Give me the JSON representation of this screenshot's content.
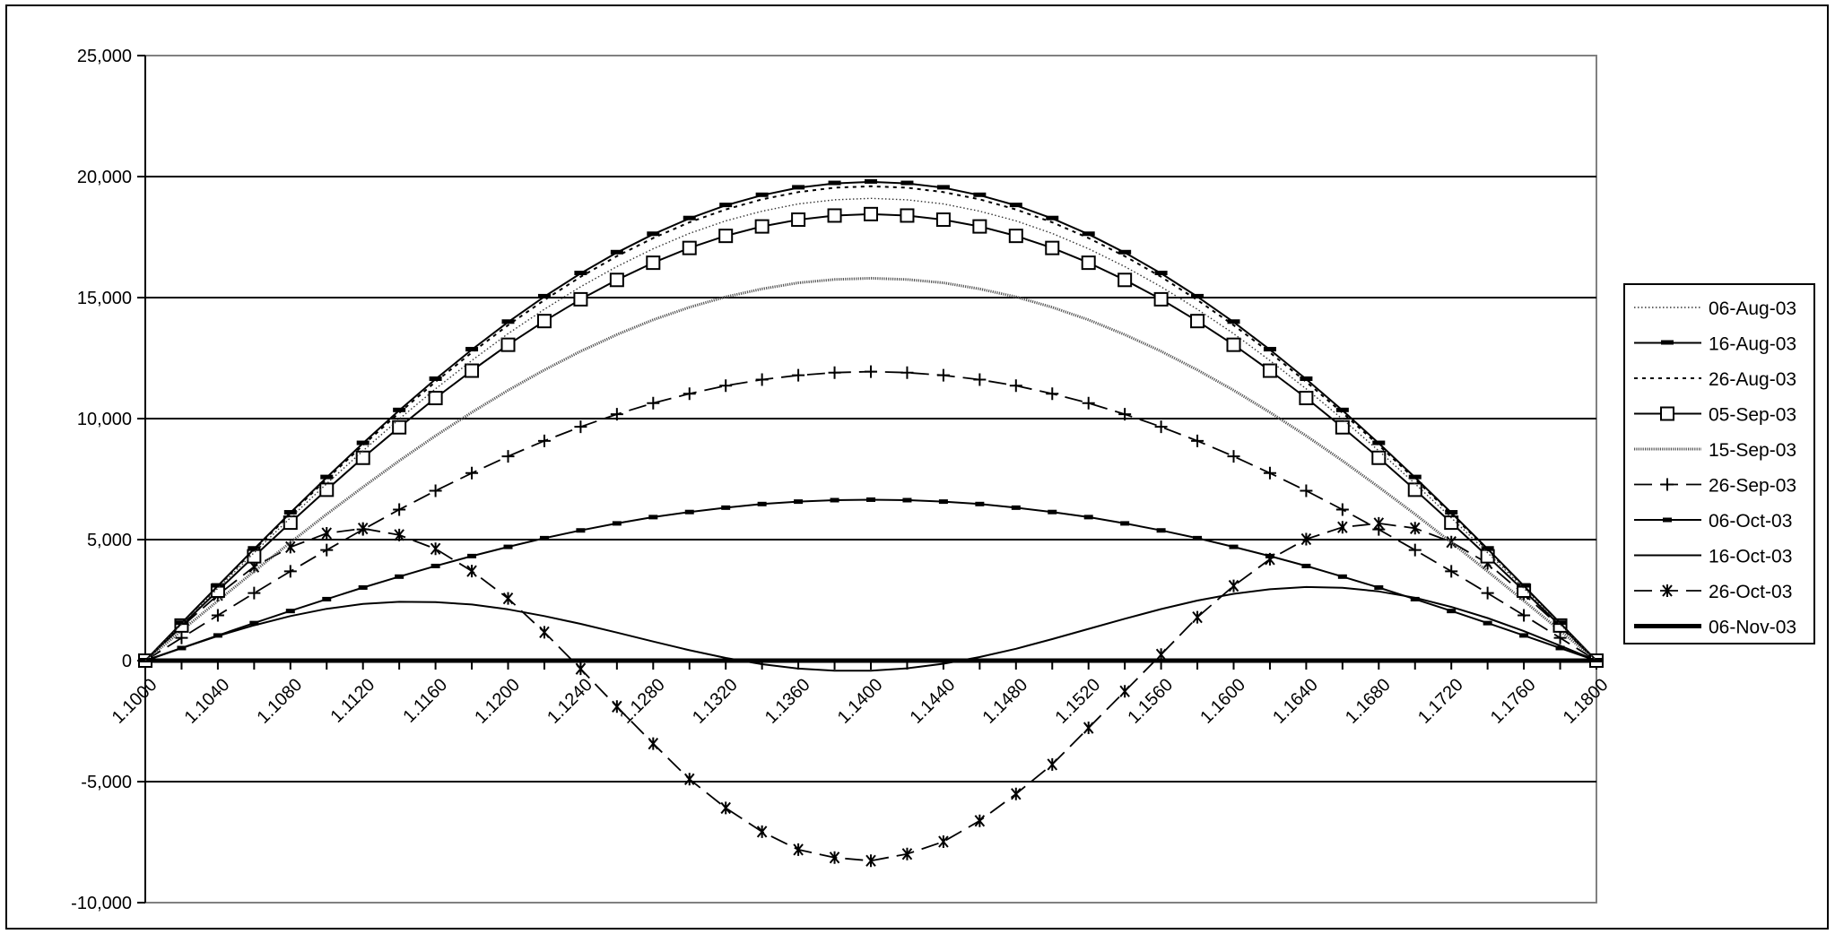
{
  "chart_data": {
    "type": "line",
    "title": "",
    "xlabel": "",
    "ylabel": "",
    "ylim": [
      -10000,
      25000
    ],
    "yticks": [
      -10000,
      -5000,
      0,
      5000,
      10000,
      15000,
      20000,
      25000
    ],
    "ytick_labels": [
      "-10,000",
      "-5,000",
      "0",
      "5,000",
      "10,000",
      "15,000",
      "20,000",
      "25,000"
    ],
    "xlim": [
      1.1,
      1.18
    ],
    "xtick_labels": [
      "1.1000",
      "1.1040",
      "1.1080",
      "1.1120",
      "1.1160",
      "1.1200",
      "1.1240",
      "1.1280",
      "1.1320",
      "1.1360",
      "1.1400",
      "1.1440",
      "1.1480",
      "1.1520",
      "1.1560",
      "1.1600",
      "1.1640",
      "1.1680",
      "1.1720",
      "1.1760",
      "1.1800"
    ],
    "x": [
      1.1,
      1.102,
      1.104,
      1.106,
      1.108,
      1.11,
      1.112,
      1.114,
      1.116,
      1.118,
      1.12,
      1.122,
      1.124,
      1.126,
      1.128,
      1.13,
      1.132,
      1.134,
      1.136,
      1.138,
      1.14,
      1.142,
      1.144,
      1.146,
      1.148,
      1.15,
      1.152,
      1.154,
      1.156,
      1.158,
      1.16,
      1.162,
      1.164,
      1.166,
      1.168,
      1.17,
      1.172,
      1.174,
      1.176,
      1.178,
      1.18
    ],
    "grid": true,
    "legend_position": "right",
    "series": [
      {
        "name": "06-Aug-03",
        "style": "dotted",
        "marker": "none",
        "values": [
          0,
          1500,
          2990,
          4460,
          5900,
          7310,
          8670,
          9980,
          11230,
          12400,
          13510,
          14520,
          15450,
          16280,
          17020,
          17650,
          18170,
          18570,
          18870,
          19040,
          19100,
          19040,
          18870,
          18570,
          18170,
          17650,
          17020,
          16280,
          15450,
          14520,
          13510,
          12400,
          11230,
          9980,
          8670,
          7310,
          5900,
          4460,
          2990,
          1500,
          0
        ]
      },
      {
        "name": "16-Aug-03",
        "style": "solid",
        "marker": "bar",
        "values": [
          0,
          1550,
          3090,
          4620,
          6110,
          7570,
          8980,
          10340,
          11630,
          12850,
          13990,
          15040,
          16000,
          16860,
          17620,
          18270,
          18810,
          19230,
          19540,
          19720,
          19780,
          19720,
          19540,
          19230,
          18810,
          18270,
          17620,
          16860,
          16000,
          15040,
          13990,
          12850,
          11630,
          10340,
          8980,
          7570,
          6110,
          4620,
          3090,
          1550,
          0
        ]
      },
      {
        "name": "26-Aug-03",
        "style": "dashed",
        "marker": "none",
        "values": [
          0,
          1540,
          3070,
          4570,
          6060,
          7500,
          8900,
          10240,
          11520,
          12730,
          13860,
          14900,
          15860,
          16710,
          17460,
          18110,
          18640,
          19060,
          19360,
          19540,
          19600,
          19540,
          19360,
          19060,
          18640,
          18110,
          17460,
          16710,
          15860,
          14900,
          13860,
          12730,
          11520,
          10240,
          8900,
          7500,
          6060,
          4570,
          3070,
          1540,
          0
        ]
      },
      {
        "name": "05-Sep-03",
        "style": "solid",
        "marker": "square",
        "values": [
          0,
          1450,
          2890,
          4310,
          5700,
          7060,
          8380,
          9640,
          10850,
          11980,
          13050,
          14030,
          14930,
          15730,
          16440,
          17050,
          17550,
          17940,
          18220,
          18390,
          18450,
          18390,
          18220,
          17940,
          17550,
          17050,
          16440,
          15730,
          14930,
          14030,
          13050,
          11980,
          10850,
          9640,
          8380,
          7060,
          5700,
          4310,
          2890,
          1450,
          0
        ]
      },
      {
        "name": "15-Sep-03",
        "style": "hatched",
        "marker": "none",
        "values": [
          0,
          1240,
          2470,
          3690,
          4880,
          6050,
          7170,
          8260,
          9290,
          10260,
          11170,
          12010,
          12780,
          13470,
          14080,
          14600,
          15030,
          15360,
          15610,
          15750,
          15800,
          15750,
          15610,
          15360,
          15030,
          14600,
          14080,
          13470,
          12780,
          12010,
          11170,
          10260,
          9290,
          8260,
          7170,
          6050,
          4880,
          3690,
          2470,
          1240,
          0
        ]
      },
      {
        "name": "26-Sep-03",
        "style": "long-dash",
        "marker": "plus",
        "values": [
          0,
          940,
          1870,
          2790,
          3690,
          4570,
          5420,
          6240,
          7020,
          7750,
          8440,
          9080,
          9660,
          10180,
          10640,
          11030,
          11360,
          11610,
          11790,
          11900,
          11940,
          11900,
          11790,
          11610,
          11360,
          11030,
          10640,
          10180,
          9660,
          9080,
          8440,
          7750,
          7020,
          6240,
          5420,
          4570,
          3690,
          2790,
          1870,
          940,
          0
        ]
      },
      {
        "name": "06-Oct-03",
        "style": "solid",
        "marker": "small-bar",
        "values": [
          0,
          520,
          1040,
          1550,
          2050,
          2540,
          3020,
          3470,
          3910,
          4320,
          4700,
          5060,
          5380,
          5670,
          5930,
          6140,
          6320,
          6470,
          6570,
          6630,
          6650,
          6630,
          6570,
          6470,
          6320,
          6140,
          5930,
          5670,
          5380,
          5060,
          4700,
          4320,
          3910,
          3470,
          3020,
          2540,
          2050,
          1550,
          1040,
          520,
          0
        ]
      },
      {
        "name": "16-Oct-03",
        "style": "solid",
        "marker": "none",
        "values": [
          0,
          520,
          1020,
          1460,
          1840,
          2140,
          2340,
          2430,
          2420,
          2320,
          2120,
          1840,
          1520,
          1160,
          790,
          430,
          110,
          -150,
          -330,
          -420,
          -420,
          -320,
          -130,
          150,
          490,
          890,
          1310,
          1730,
          2130,
          2480,
          2760,
          2950,
          3040,
          3010,
          2860,
          2600,
          2220,
          1760,
          1220,
          620,
          0
        ]
      },
      {
        "name": "26-Oct-03",
        "style": "long-dash",
        "marker": "asterisk",
        "values": [
          0,
          1400,
          2710,
          3880,
          4690,
          5260,
          5460,
          5190,
          4620,
          3700,
          2570,
          1170,
          -340,
          -1900,
          -3430,
          -4900,
          -6090,
          -7070,
          -7810,
          -8140,
          -8270,
          -7990,
          -7480,
          -6620,
          -5510,
          -4290,
          -2780,
          -1270,
          250,
          1790,
          3090,
          4190,
          5020,
          5510,
          5670,
          5470,
          4900,
          4020,
          2750,
          1400,
          0
        ]
      },
      {
        "name": "06-Nov-03",
        "style": "thick",
        "marker": "none",
        "values": [
          0,
          0,
          0,
          0,
          0,
          0,
          0,
          0,
          0,
          0,
          0,
          0,
          0,
          0,
          0,
          0,
          0,
          0,
          0,
          0,
          0,
          0,
          0,
          0,
          0,
          0,
          0,
          0,
          0,
          0,
          0,
          0,
          0,
          0,
          0,
          0,
          0,
          0,
          0,
          0,
          0
        ]
      }
    ],
    "colors": {
      "line": "#000000",
      "plot_border": "#808080",
      "gridline": "#000000",
      "background": "#ffffff"
    }
  }
}
